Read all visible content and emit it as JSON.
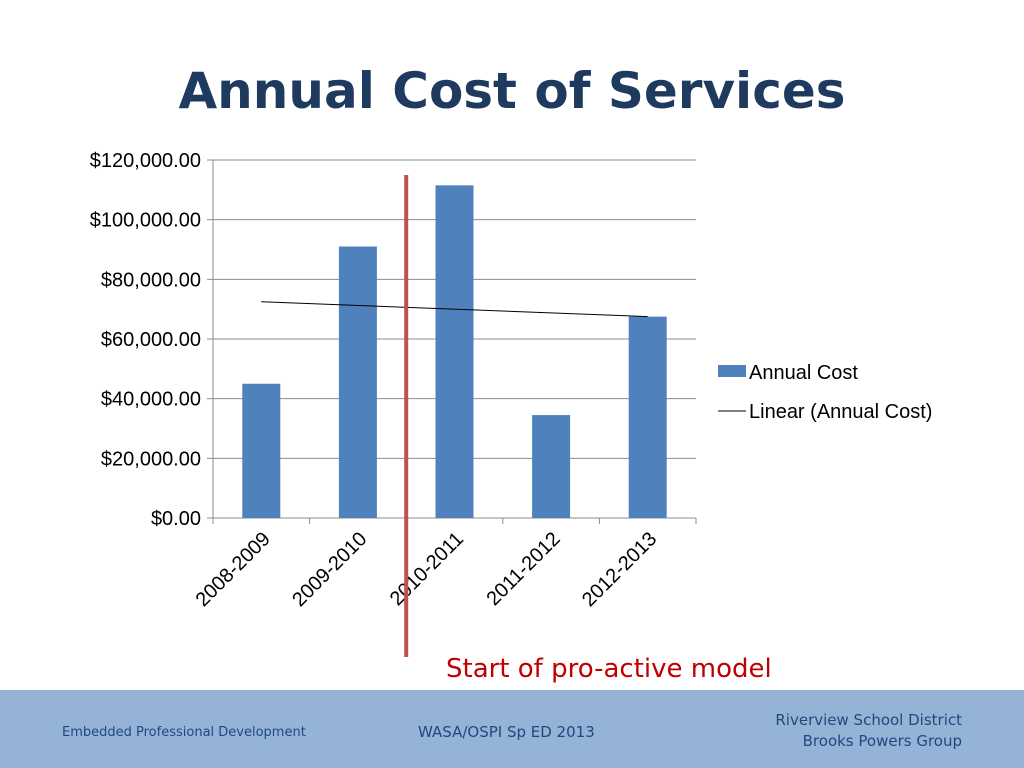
{
  "slide": {
    "title": "Annual Cost of Services",
    "annotation": "Start of pro-active model",
    "footer": {
      "left": "Embedded Professional Development",
      "center": "WASA/OSPI Sp ED 2013",
      "right_line1": "Riverview School District",
      "right_line2": "Brooks Powers Group"
    }
  },
  "colors": {
    "title": "#1f3a5f",
    "bar": "#4f81bd",
    "marker_line": "#c0504d",
    "annotation": "#c00000",
    "footer_bg": "#95b3d7",
    "footer_text": "#1f497d"
  },
  "chart_data": {
    "type": "bar",
    "categories": [
      "2008-2009",
      "2009-2010",
      "2010-2011",
      "2011-2012",
      "2012-2013"
    ],
    "series": [
      {
        "name": "Annual Cost",
        "values": [
          45000,
          91000,
          111500,
          34500,
          67500
        ]
      }
    ],
    "trendline": {
      "name": "Linear (Annual Cost)",
      "type": "linear",
      "start": 72500,
      "end": 67500
    },
    "ylim": [
      0,
      120000
    ],
    "yticks": [
      0,
      20000,
      40000,
      60000,
      80000,
      100000,
      120000
    ],
    "ytick_labels": [
      "$0.00",
      "$20,000.00",
      "$40,000.00",
      "$60,000.00",
      "$80,000.00",
      "$100,000.00",
      "$120,000.00"
    ],
    "grid": true,
    "legend_position": "right",
    "marker_after_category": "2009-2010"
  }
}
